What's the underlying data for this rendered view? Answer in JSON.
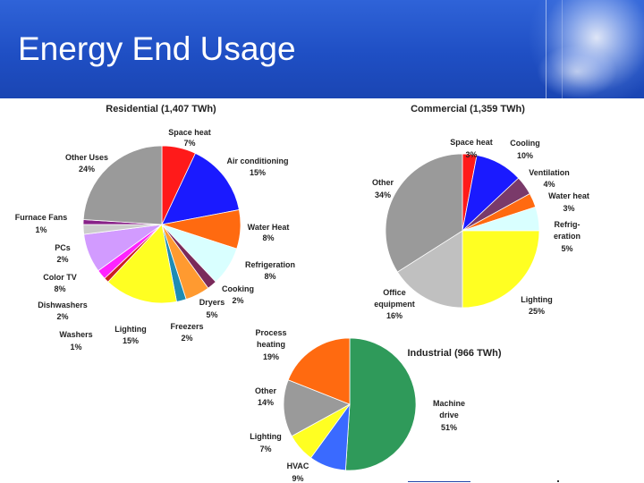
{
  "page": {
    "title": "Energy End Usage"
  },
  "chart_data": [
    {
      "type": "pie",
      "title": "Residential (1,407 TWh)",
      "slices": [
        {
          "label": "Space heat",
          "pct_text": "7%",
          "value": 7,
          "color": "#ff1a1a"
        },
        {
          "label": "Air conditioning",
          "pct_text": "15%",
          "value": 15,
          "color": "#1a1aff"
        },
        {
          "label": "Water Heat",
          "pct_text": "8%",
          "value": 8,
          "color": "#ff6a10"
        },
        {
          "label": "Refrigeration",
          "pct_text": "8%",
          "value": 8,
          "color": "#d9ffff"
        },
        {
          "label": "Cooking",
          "pct_text": "2%",
          "value": 2,
          "color": "#7a2a5a"
        },
        {
          "label": "Dryers",
          "pct_text": "5%",
          "value": 5,
          "color": "#ff9a30"
        },
        {
          "label": "Freezers",
          "pct_text": "2%",
          "value": 2,
          "color": "#1e8cb4"
        },
        {
          "label": "Lighting",
          "pct_text": "15%",
          "value": 15,
          "color": "#ffff22"
        },
        {
          "label": "Washers",
          "pct_text": "1%",
          "value": 1,
          "color": "#cc2020"
        },
        {
          "label": "Dishwashers",
          "pct_text": "2%",
          "value": 2,
          "color": "#ff22ff"
        },
        {
          "label": "Color TV",
          "pct_text": "8%",
          "value": 8,
          "color": "#d29bff"
        },
        {
          "label": "PCs",
          "pct_text": "2%",
          "value": 2,
          "color": "#cccccc"
        },
        {
          "label": "Furnace Fans",
          "pct_text": "1%",
          "value": 1,
          "color": "#882288"
        },
        {
          "label": "Other Uses",
          "pct_text": "24%",
          "value": 24,
          "color": "#9a9a9a"
        }
      ]
    },
    {
      "type": "pie",
      "title": "Commercial (1,359 TWh)",
      "slices": [
        {
          "label": "Space heat",
          "pct_text": "3%",
          "value": 3,
          "color": "#ff1a1a"
        },
        {
          "label": "Cooling",
          "pct_text": "10%",
          "value": 10,
          "color": "#1a1aff"
        },
        {
          "label": "Ventilation",
          "pct_text": "4%",
          "value": 4,
          "color": "#7a3a6a"
        },
        {
          "label": "Water heat",
          "pct_text": "3%",
          "value": 3,
          "color": "#ff6a10"
        },
        {
          "label": "Refrig-eration",
          "pct_text": "5%",
          "value": 5,
          "color": "#d9ffff"
        },
        {
          "label": "Lighting",
          "pct_text": "25%",
          "value": 25,
          "color": "#ffff22"
        },
        {
          "label": "Office equipment",
          "pct_text": "16%",
          "value": 16,
          "color": "#c0c0c0"
        },
        {
          "label": "Other",
          "pct_text": "34%",
          "value": 34,
          "color": "#9a9a9a"
        }
      ]
    },
    {
      "type": "pie",
      "title": "Industrial (966 TWh)",
      "slices": [
        {
          "label": "Machine drive",
          "pct_text": "51%",
          "value": 51,
          "color": "#2f9a5a"
        },
        {
          "label": "HVAC",
          "pct_text": "9%",
          "value": 9,
          "color": "#3a6aff"
        },
        {
          "label": "Lighting",
          "pct_text": "7%",
          "value": 7,
          "color": "#ffff22"
        },
        {
          "label": "Other",
          "pct_text": "14%",
          "value": 14,
          "color": "#9a9a9a"
        },
        {
          "label": "Process heating",
          "pct_text": "19%",
          "value": 19,
          "color": "#ff6a10"
        }
      ]
    }
  ]
}
